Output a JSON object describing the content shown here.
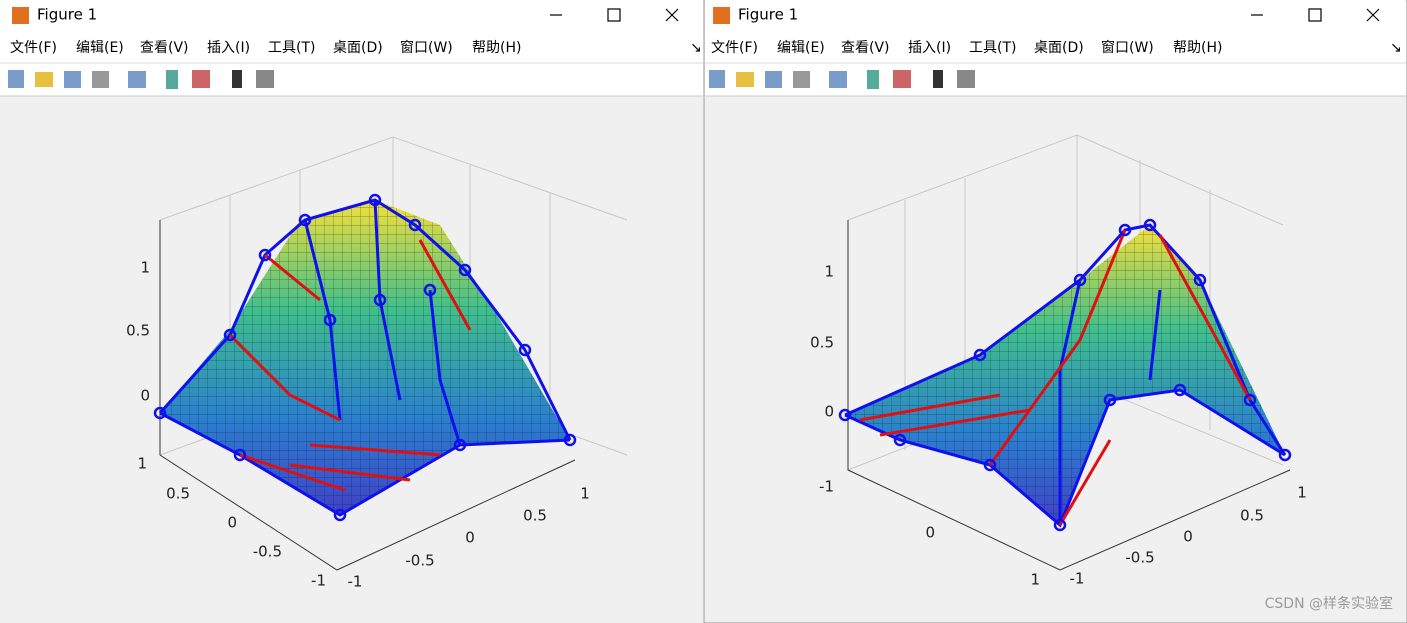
{
  "windows": [
    {
      "title": "Figure 1",
      "menu": [
        "文件(F)",
        "编辑(E)",
        "查看(V)",
        "插入(I)",
        "工具(T)",
        "桌面(D)",
        "窗口(W)",
        "帮助(H)"
      ],
      "z_ticks": [
        "1",
        "0.5",
        "0"
      ],
      "left_ticks": [
        "1",
        "0.5",
        "0",
        "-0.5",
        "-1"
      ],
      "right_ticks": [
        "-1",
        "-0.5",
        "0",
        "0.5",
        "1"
      ]
    },
    {
      "title": "Figure 1",
      "menu": [
        "文件(F)",
        "编辑(E)",
        "查看(V)",
        "插入(I)",
        "工具(T)",
        "桌面(D)",
        "窗口(W)",
        "帮助(H)"
      ],
      "z_ticks": [
        "1",
        "0.5",
        "0"
      ],
      "left_ticks": [
        "-1",
        "0",
        "1"
      ],
      "right_ticks": [
        "-1",
        "-0.5",
        "0",
        "0.5",
        "1"
      ]
    }
  ],
  "watermark": "CSDN @样条实验室"
}
